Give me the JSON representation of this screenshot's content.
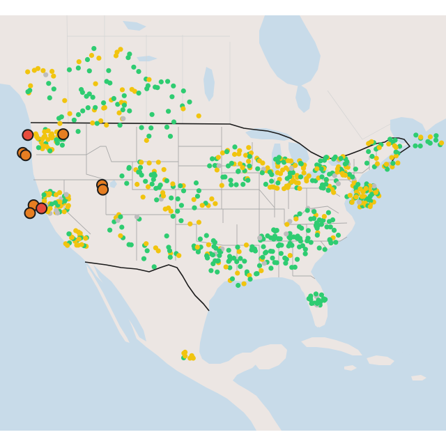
{
  "map": {
    "title": "",
    "colors": {
      "ocean": "#c8dbe9",
      "land": "#ece6e3",
      "land_shade": "#e4dbd6",
      "country_border": "#1b1b1b",
      "state_border": "#a9a9a9",
      "good": "#2ecc71",
      "moderate": "#f1c40f",
      "unhealthy_sensitive": "#e67e22",
      "unhealthy": "#e74c3c",
      "no_data": "#bdbdbd",
      "marker_outline": "#1b1b1b"
    },
    "marker_categories": [
      "good",
      "moderate",
      "unhealthy_sensitive",
      "unhealthy",
      "no_data"
    ],
    "large_markers": [
      {
        "category": "unhealthy",
        "lon": -122.3,
        "lat": 47.6
      },
      {
        "category": "unhealthy_sensitive",
        "lon": -117.4,
        "lat": 47.7
      },
      {
        "category": "unhealthy_sensitive",
        "lon": -123.0,
        "lat": 45.3
      },
      {
        "category": "unhealthy_sensitive",
        "lon": -122.6,
        "lat": 45.0
      },
      {
        "category": "unhealthy_sensitive",
        "lon": -112.0,
        "lat": 41.2
      },
      {
        "category": "unhealthy_sensitive",
        "lon": -111.9,
        "lat": 40.6
      },
      {
        "category": "unhealthy_sensitive",
        "lon": -121.5,
        "lat": 38.6
      },
      {
        "category": "unhealthy",
        "lon": -120.4,
        "lat": 38.2
      },
      {
        "category": "unhealthy_sensitive",
        "lon": -122.0,
        "lat": 37.6
      }
    ]
  }
}
